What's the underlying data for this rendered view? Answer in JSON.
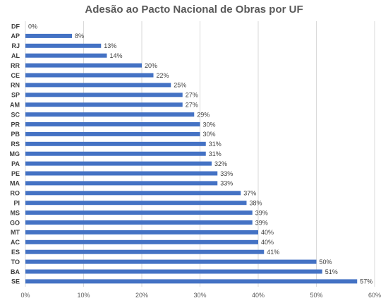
{
  "chart_data": {
    "type": "bar",
    "orientation": "horizontal",
    "title": "Adesão ao Pacto Nacional de Obras por UF",
    "xlabel": "",
    "ylabel": "",
    "categories": [
      "DF",
      "AP",
      "RJ",
      "AL",
      "RR",
      "CE",
      "RN",
      "SP",
      "AM",
      "SC",
      "PR",
      "PB",
      "RS",
      "MG",
      "PA",
      "PE",
      "MA",
      "RO",
      "PI",
      "MS",
      "GO",
      "MT",
      "AC",
      "ES",
      "TO",
      "BA",
      "SE"
    ],
    "values": [
      0,
      8,
      13,
      14,
      20,
      22,
      25,
      27,
      27,
      29,
      30,
      30,
      31,
      31,
      32,
      33,
      33,
      37,
      38,
      39,
      39,
      40,
      40,
      41,
      50,
      51,
      57
    ],
    "data_labels": [
      "0%",
      "8%",
      "13%",
      "14%",
      "20%",
      "22%",
      "25%",
      "27%",
      "27%",
      "29%",
      "30%",
      "30%",
      "31%",
      "31%",
      "32%",
      "33%",
      "33%",
      "37%",
      "38%",
      "39%",
      "39%",
      "40%",
      "40%",
      "41%",
      "50%",
      "51%",
      "57%"
    ],
    "xlim": [
      0,
      60
    ],
    "x_ticks": [
      "0%",
      "10%",
      "20%",
      "30%",
      "40%",
      "50%",
      "60%"
    ],
    "grid": true,
    "bar_color": "#4472C4"
  }
}
